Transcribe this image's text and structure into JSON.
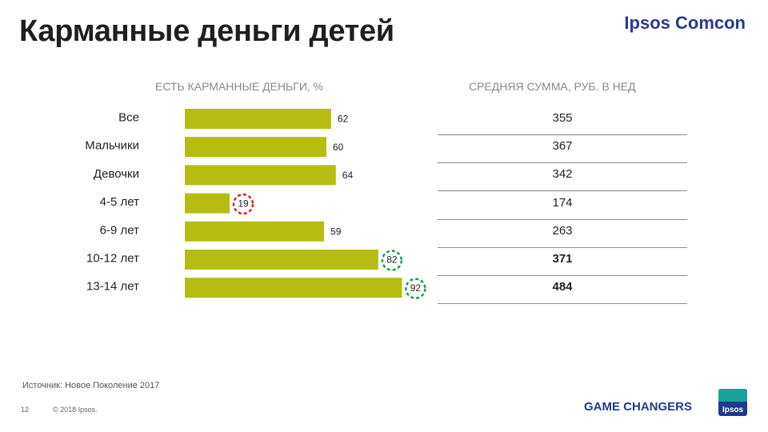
{
  "title": "Карманные деньги детей",
  "brand": "Ipsos Comcon",
  "left_header": "ЕСТЬ КАРМАННЫЕ ДЕНЬГИ, %",
  "right_header": "СРЕДНЯЯ СУММА, РУБ. В НЕД",
  "chart_data": {
    "type": "bar",
    "orientation": "horizontal",
    "categories": [
      "Все",
      "Мальчики",
      "Девочки",
      "4-5 лет",
      "6-9 лет",
      "10-12 лет",
      "13-14 лет"
    ],
    "values": [
      62,
      60,
      64,
      19,
      59,
      82,
      92
    ],
    "xlim": [
      0,
      100
    ],
    "bar_color": "#b5bd12",
    "highlights": [
      {
        "category": "4-5 лет",
        "color": "#e01e1e"
      },
      {
        "category": "10-12 лет",
        "color": "#1aa34a"
      },
      {
        "category": "13-14 лет",
        "color": "#1aa34a"
      }
    ]
  },
  "table": {
    "rows": [
      {
        "value": "355",
        "bold": false
      },
      {
        "value": "367",
        "bold": false
      },
      {
        "value": "342",
        "bold": false
      },
      {
        "value": "174",
        "bold": false
      },
      {
        "value": "263",
        "bold": false
      },
      {
        "value": "371",
        "bold": true
      },
      {
        "value": "484",
        "bold": true
      }
    ]
  },
  "footer": {
    "source": "Источник: Новое Поколение 2017",
    "page_number": "12",
    "copyright": "© 2018 Ipsos.",
    "tagline": "GAME CHANGERS",
    "logo_text": "Ipsos"
  }
}
